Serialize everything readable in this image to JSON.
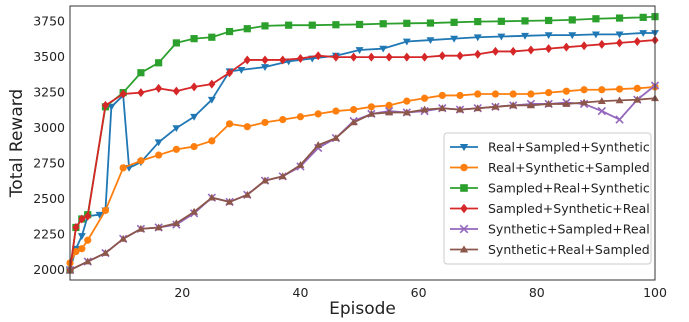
{
  "chart_data": {
    "type": "line",
    "title": "",
    "xlabel": "Episode",
    "ylabel": "Total Reward",
    "xlim": [
      1,
      100
    ],
    "ylim": [
      1930,
      3860
    ],
    "xticks": [
      20,
      40,
      60,
      80,
      100
    ],
    "yticks": [
      2000,
      2250,
      2500,
      2750,
      3000,
      3250,
      3500,
      3750
    ],
    "grid": false,
    "legend_position": "lower-right",
    "series": [
      {
        "name": "Real+Sampled+Synthetic",
        "color": "#1f77b4",
        "marker": "triangle-down",
        "points": [
          [
            1,
            2000
          ],
          [
            2,
            2150
          ],
          [
            3,
            2240
          ],
          [
            4,
            2380
          ],
          [
            6,
            2390
          ],
          [
            7,
            2420
          ],
          [
            8,
            3150
          ],
          [
            10,
            3230
          ],
          [
            11,
            2720
          ],
          [
            13,
            2760
          ],
          [
            16,
            2900
          ],
          [
            19,
            3000
          ],
          [
            22,
            3080
          ],
          [
            25,
            3200
          ],
          [
            28,
            3400
          ],
          [
            30,
            3410
          ],
          [
            34,
            3430
          ],
          [
            38,
            3470
          ],
          [
            42,
            3490
          ],
          [
            46,
            3510
          ],
          [
            50,
            3550
          ],
          [
            54,
            3560
          ],
          [
            58,
            3610
          ],
          [
            62,
            3620
          ],
          [
            66,
            3630
          ],
          [
            70,
            3640
          ],
          [
            74,
            3645
          ],
          [
            78,
            3650
          ],
          [
            82,
            3655
          ],
          [
            86,
            3655
          ],
          [
            90,
            3660
          ],
          [
            94,
            3660
          ],
          [
            98,
            3670
          ],
          [
            100,
            3670
          ]
        ]
      },
      {
        "name": "Real+Synthetic+Sampled",
        "color": "#ff7f0e",
        "marker": "circle",
        "points": [
          [
            1,
            2050
          ],
          [
            2,
            2130
          ],
          [
            3,
            2150
          ],
          [
            4,
            2210
          ],
          [
            7,
            2420
          ],
          [
            10,
            2720
          ],
          [
            13,
            2770
          ],
          [
            16,
            2810
          ],
          [
            19,
            2850
          ],
          [
            22,
            2870
          ],
          [
            25,
            2910
          ],
          [
            28,
            3030
          ],
          [
            31,
            3010
          ],
          [
            34,
            3040
          ],
          [
            37,
            3060
          ],
          [
            40,
            3080
          ],
          [
            43,
            3100
          ],
          [
            46,
            3120
          ],
          [
            49,
            3130
          ],
          [
            52,
            3150
          ],
          [
            55,
            3160
          ],
          [
            58,
            3190
          ],
          [
            61,
            3210
          ],
          [
            64,
            3230
          ],
          [
            67,
            3230
          ],
          [
            70,
            3240
          ],
          [
            73,
            3240
          ],
          [
            76,
            3240
          ],
          [
            79,
            3240
          ],
          [
            82,
            3250
          ],
          [
            85,
            3260
          ],
          [
            88,
            3270
          ],
          [
            91,
            3270
          ],
          [
            94,
            3275
          ],
          [
            97,
            3280
          ],
          [
            100,
            3290
          ]
        ]
      },
      {
        "name": "Sampled+Real+Synthetic",
        "color": "#2ca02c",
        "marker": "square",
        "points": [
          [
            1,
            2000
          ],
          [
            2,
            2300
          ],
          [
            3,
            2360
          ],
          [
            4,
            2390
          ],
          [
            7,
            3150
          ],
          [
            10,
            3250
          ],
          [
            13,
            3390
          ],
          [
            16,
            3460
          ],
          [
            19,
            3600
          ],
          [
            22,
            3630
          ],
          [
            25,
            3640
          ],
          [
            28,
            3680
          ],
          [
            31,
            3700
          ],
          [
            34,
            3720
          ],
          [
            38,
            3725
          ],
          [
            42,
            3725
          ],
          [
            46,
            3728
          ],
          [
            50,
            3730
          ],
          [
            54,
            3735
          ],
          [
            58,
            3738
          ],
          [
            62,
            3740
          ],
          [
            66,
            3745
          ],
          [
            70,
            3750
          ],
          [
            74,
            3752
          ],
          [
            78,
            3755
          ],
          [
            82,
            3758
          ],
          [
            86,
            3762
          ],
          [
            90,
            3770
          ],
          [
            94,
            3775
          ],
          [
            98,
            3780
          ],
          [
            100,
            3785
          ]
        ]
      },
      {
        "name": "Sampled+Synthetic+Real",
        "color": "#d62728",
        "marker": "diamond",
        "points": [
          [
            1,
            2000
          ],
          [
            2,
            2300
          ],
          [
            3,
            2360
          ],
          [
            4,
            2380
          ],
          [
            7,
            3160
          ],
          [
            10,
            3240
          ],
          [
            13,
            3250
          ],
          [
            16,
            3280
          ],
          [
            19,
            3260
          ],
          [
            22,
            3290
          ],
          [
            25,
            3310
          ],
          [
            28,
            3390
          ],
          [
            31,
            3480
          ],
          [
            34,
            3480
          ],
          [
            37,
            3480
          ],
          [
            40,
            3490
          ],
          [
            43,
            3510
          ],
          [
            46,
            3500
          ],
          [
            49,
            3500
          ],
          [
            52,
            3500
          ],
          [
            55,
            3500
          ],
          [
            58,
            3500
          ],
          [
            61,
            3500
          ],
          [
            64,
            3510
          ],
          [
            67,
            3510
          ],
          [
            70,
            3520
          ],
          [
            73,
            3540
          ],
          [
            76,
            3540
          ],
          [
            79,
            3550
          ],
          [
            82,
            3560
          ],
          [
            85,
            3570
          ],
          [
            88,
            3580
          ],
          [
            91,
            3590
          ],
          [
            94,
            3600
          ],
          [
            97,
            3610
          ],
          [
            100,
            3620
          ]
        ]
      },
      {
        "name": "Synthetic+Sampled+Real",
        "color": "#9467bd",
        "marker": "x",
        "points": [
          [
            1,
            2000
          ],
          [
            4,
            2060
          ],
          [
            7,
            2120
          ],
          [
            10,
            2220
          ],
          [
            13,
            2290
          ],
          [
            16,
            2300
          ],
          [
            19,
            2320
          ],
          [
            22,
            2400
          ],
          [
            25,
            2510
          ],
          [
            28,
            2480
          ],
          [
            31,
            2530
          ],
          [
            34,
            2630
          ],
          [
            37,
            2660
          ],
          [
            40,
            2730
          ],
          [
            43,
            2860
          ],
          [
            46,
            2930
          ],
          [
            49,
            3050
          ],
          [
            52,
            3100
          ],
          [
            55,
            3120
          ],
          [
            58,
            3110
          ],
          [
            61,
            3120
          ],
          [
            64,
            3140
          ],
          [
            67,
            3130
          ],
          [
            70,
            3140
          ],
          [
            73,
            3150
          ],
          [
            76,
            3160
          ],
          [
            79,
            3170
          ],
          [
            82,
            3170
          ],
          [
            85,
            3180
          ],
          [
            88,
            3170
          ],
          [
            91,
            3120
          ],
          [
            94,
            3060
          ],
          [
            97,
            3200
          ],
          [
            100,
            3300
          ]
        ]
      },
      {
        "name": "Synthetic+Real+Sampled",
        "color": "#8c564b",
        "marker": "triangle-up",
        "points": [
          [
            1,
            2000
          ],
          [
            4,
            2060
          ],
          [
            7,
            2120
          ],
          [
            10,
            2220
          ],
          [
            13,
            2290
          ],
          [
            16,
            2300
          ],
          [
            19,
            2330
          ],
          [
            22,
            2410
          ],
          [
            25,
            2510
          ],
          [
            28,
            2480
          ],
          [
            31,
            2530
          ],
          [
            34,
            2630
          ],
          [
            37,
            2660
          ],
          [
            40,
            2740
          ],
          [
            43,
            2880
          ],
          [
            46,
            2930
          ],
          [
            49,
            3040
          ],
          [
            52,
            3100
          ],
          [
            55,
            3110
          ],
          [
            58,
            3110
          ],
          [
            61,
            3130
          ],
          [
            64,
            3140
          ],
          [
            67,
            3130
          ],
          [
            70,
            3140
          ],
          [
            73,
            3150
          ],
          [
            76,
            3160
          ],
          [
            79,
            3160
          ],
          [
            82,
            3170
          ],
          [
            85,
            3170
          ],
          [
            88,
            3180
          ],
          [
            91,
            3190
          ],
          [
            94,
            3195
          ],
          [
            97,
            3200
          ],
          [
            100,
            3210
          ]
        ]
      }
    ]
  }
}
